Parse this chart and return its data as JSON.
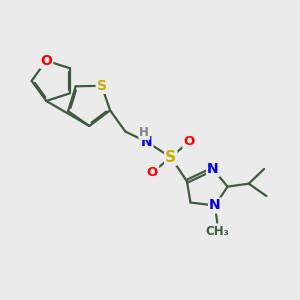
{
  "bg_color": "#ebebeb",
  "bond_color": "#3d5c3d",
  "atom_colors": {
    "O": "#ff0000",
    "S": "#ccaa00",
    "N": "#0000ee",
    "H": "#808080",
    "C": "#3d5c3d"
  },
  "lw": 1.6,
  "dbo": 0.055,
  "fs": 8.5
}
